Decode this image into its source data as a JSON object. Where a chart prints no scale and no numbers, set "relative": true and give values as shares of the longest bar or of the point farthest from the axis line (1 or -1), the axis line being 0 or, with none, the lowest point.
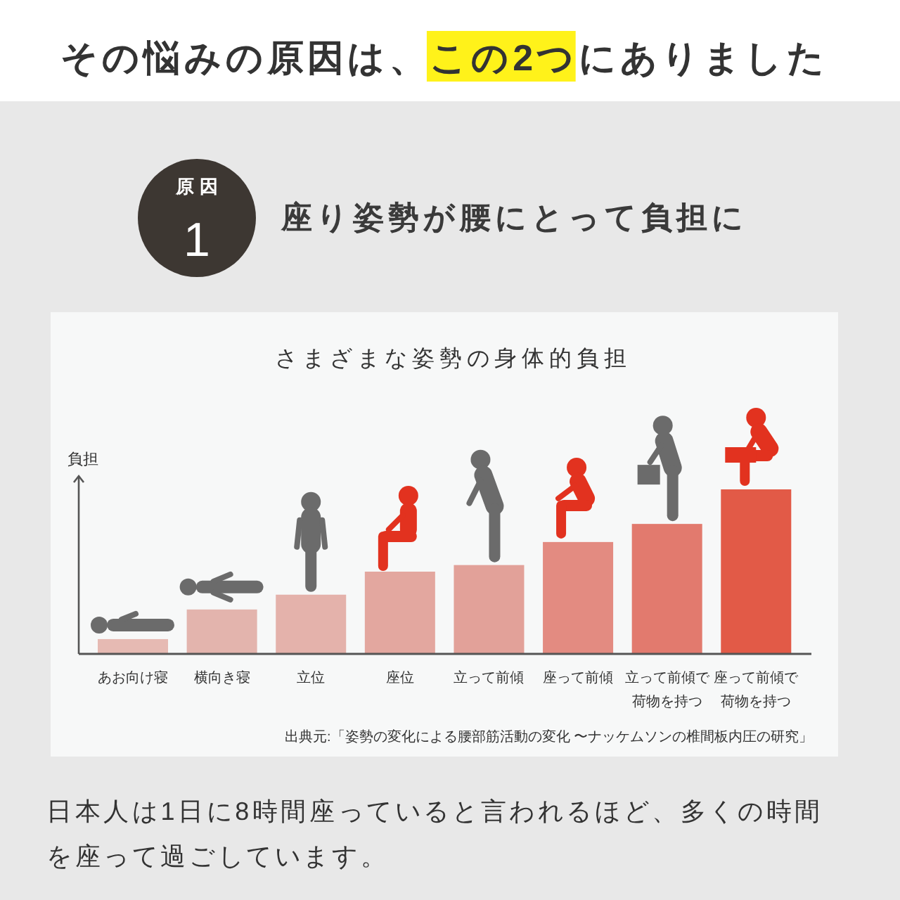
{
  "chart_data": {
    "type": "bar",
    "title": "さまざまな姿勢の身体的負担",
    "ylabel": "負担",
    "relative": true,
    "categories": [
      "あお向け寝",
      "横向き寝",
      "立位",
      "座位",
      "立って前傾",
      "座って前傾",
      "立って前傾で荷物を持つ",
      "座って前傾で荷物を持つ"
    ],
    "values": [
      0.09,
      0.27,
      0.36,
      0.5,
      0.54,
      0.68,
      0.79,
      1
    ],
    "colors": [
      "#e6bab3",
      "#e3b4ad",
      "#e4b2ab",
      "#e3a79f",
      "#e2a199",
      "#e38b81",
      "#e27a6e",
      "#e25a47"
    ],
    "annotations": [
      "その悩みの原因は、",
      "この2つ",
      "にありました",
      "原因",
      "1",
      "座り姿勢が腰にとって負担に",
      "出典元:「姿勢の変化による腰部筋活動の変化 〜ナッケムソンの椎間板内圧の研究」",
      "日本人は1日に8時間座っていると言われるほど、多くの時間を座って過ごしています。"
    ]
  }
}
